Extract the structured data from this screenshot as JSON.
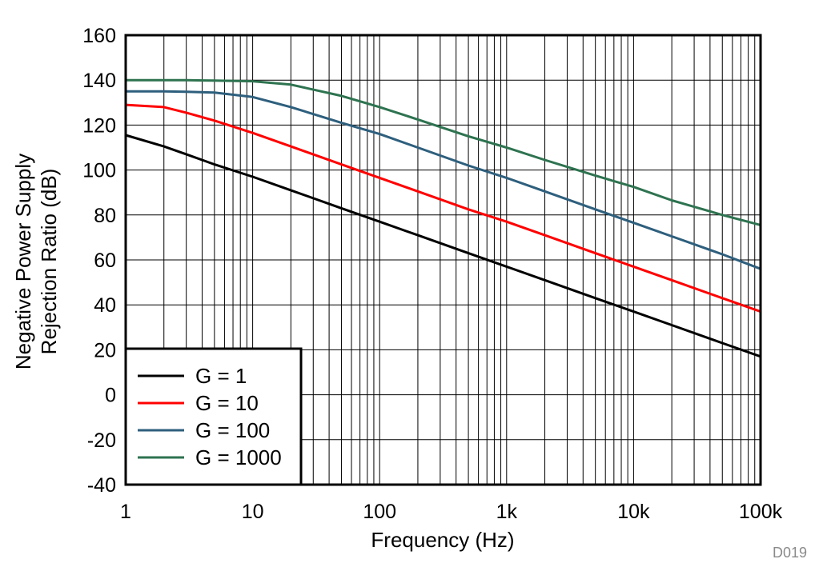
{
  "chart_data": {
    "type": "line",
    "title": "",
    "xlabel": "Frequency (Hz)",
    "ylabel_lines": [
      "Negative Power Supply",
      "Rejection Ratio (dB)"
    ],
    "xscale": "log",
    "xlim": [
      1,
      100000
    ],
    "ylim": [
      -40,
      160
    ],
    "grid": true,
    "legend_position": "bottom-left",
    "x_ticks": [
      1,
      10,
      100,
      1000,
      10000,
      100000
    ],
    "x_tick_labels": [
      "1",
      "10",
      "100",
      "1k",
      "10k",
      "100k"
    ],
    "y_ticks": [
      -40,
      -20,
      0,
      20,
      40,
      60,
      80,
      100,
      120,
      140,
      160
    ],
    "y_tick_labels": [
      "-40",
      "-20",
      "0",
      "20",
      "40",
      "60",
      "80",
      "100",
      "120",
      "140",
      "160"
    ],
    "figure_id": "D019",
    "series": [
      {
        "name": "G = 1",
        "color": "#000000",
        "x": [
          1,
          2,
          3,
          5,
          10,
          20,
          50,
          100,
          200,
          500,
          1000,
          2000,
          5000,
          10000,
          20000,
          50000,
          100000
        ],
        "values": [
          115.5,
          110.5,
          107,
          102.5,
          97,
          91,
          83,
          77,
          71,
          63,
          57,
          51,
          43,
          37,
          31,
          23,
          17
        ]
      },
      {
        "name": "G = 10",
        "color": "#ff0000",
        "x": [
          1,
          2,
          3,
          5,
          10,
          20,
          50,
          100,
          200,
          500,
          1000,
          2000,
          5000,
          10000,
          20000,
          50000,
          100000
        ],
        "values": [
          129,
          128,
          125.5,
          122,
          116.5,
          110.5,
          102.5,
          96.5,
          90.5,
          82.5,
          77,
          71,
          63,
          57,
          51,
          43,
          37
        ]
      },
      {
        "name": "G = 100",
        "color": "#2e5f7d",
        "x": [
          1,
          2,
          3,
          5,
          10,
          20,
          50,
          100,
          200,
          500,
          1000,
          2000,
          5000,
          10000,
          20000,
          50000,
          100000
        ],
        "values": [
          135,
          135,
          134.8,
          134.5,
          132.5,
          128,
          121,
          116,
          110,
          102,
          96.5,
          90.5,
          82.5,
          76.5,
          70.5,
          62.5,
          56
        ]
      },
      {
        "name": "G = 1000",
        "color": "#2e7350",
        "x": [
          1,
          2,
          3,
          5,
          10,
          20,
          50,
          100,
          200,
          500,
          1000,
          2000,
          5000,
          10000,
          20000,
          50000,
          100000
        ],
        "values": [
          140,
          140,
          140,
          139.8,
          139.5,
          138,
          133,
          128,
          122.5,
          115,
          110,
          104.5,
          97.5,
          92.5,
          86.5,
          80,
          75.5
        ]
      }
    ]
  }
}
